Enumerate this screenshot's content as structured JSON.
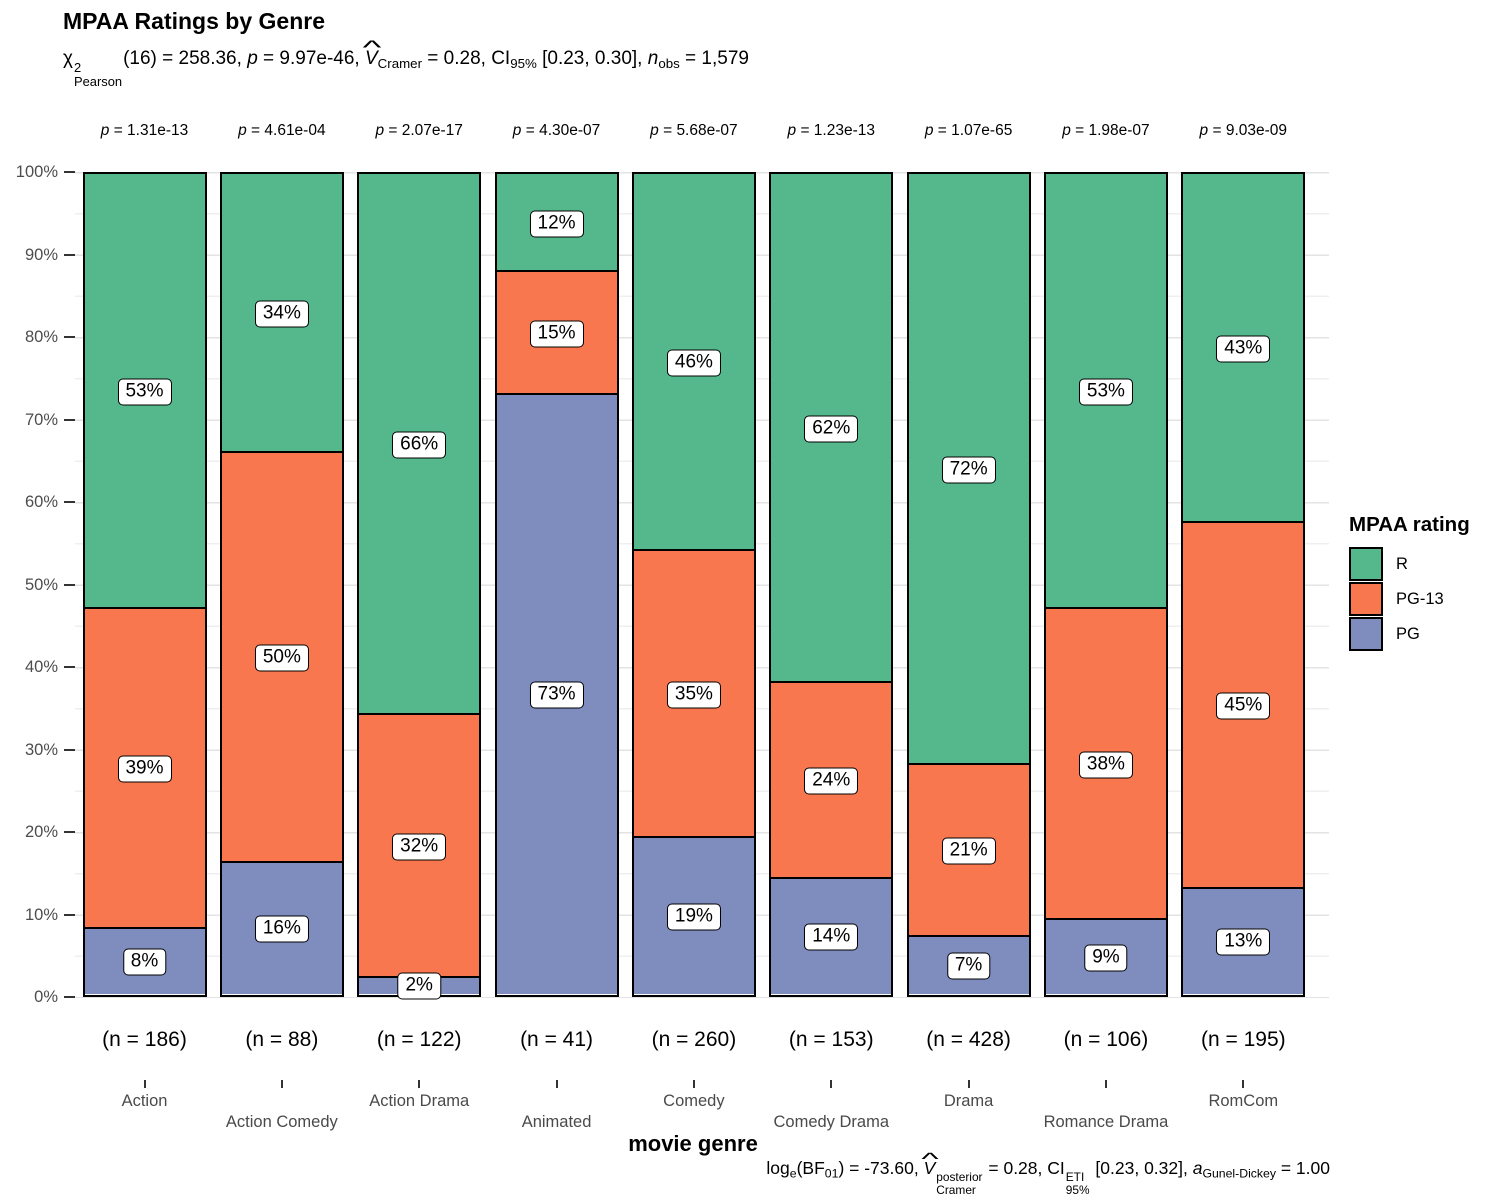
{
  "title": "MPAA Ratings by Genre",
  "subtitle_tokens": [
    {
      "t": "χ"
    },
    {
      "stack": {
        "sup": "2",
        "sub": "Pearson"
      }
    },
    {
      "t": "(16) = 258.36, "
    },
    {
      "t": "p",
      "it": true
    },
    {
      "t": " = 9.97e-46, "
    },
    {
      "t": "V",
      "it": true,
      "hat": true
    },
    {
      "t": "Cramer",
      "sub": true
    },
    {
      "t": " = 0.28, CI"
    },
    {
      "t": "95%",
      "sub": true
    },
    {
      "t": " [0.23, 0.30], "
    },
    {
      "t": "n",
      "it": true
    },
    {
      "t": "obs",
      "sub": true
    },
    {
      "t": " = 1,579"
    }
  ],
  "caption_tokens": [
    {
      "t": "log"
    },
    {
      "t": "e",
      "sub": true
    },
    {
      "t": "(BF"
    },
    {
      "t": "01",
      "sub": true
    },
    {
      "t": ") = -73.60, "
    },
    {
      "t": "V",
      "it": true,
      "hat": true
    },
    {
      "stack": {
        "sup": "posterior",
        "sub": "Cramer"
      }
    },
    {
      "t": " = 0.28, CI"
    },
    {
      "stack": {
        "sup": "ETI",
        "sub": "95%"
      }
    },
    {
      "t": " [0.23, 0.32], "
    },
    {
      "t": "a",
      "it": true
    },
    {
      "t": "Gunel-Dickey",
      "sub": true
    },
    {
      "t": " = 1.00"
    }
  ],
  "p_symbol": "p",
  "p_equals": " = ",
  "legend": {
    "title": "MPAA rating",
    "items": [
      {
        "label": "R",
        "color": "#55B78C"
      },
      {
        "label": "PG-13",
        "color": "#F8774F"
      },
      {
        "label": "PG",
        "color": "#7E8CBE"
      }
    ]
  },
  "chart_data": {
    "type": "bar",
    "stacked": true,
    "percent": true,
    "grid": true,
    "legend_position": "right",
    "title": "MPAA Ratings by Genre",
    "xlabel": "movie genre",
    "ylabel": "",
    "ylim": [
      0,
      100
    ],
    "y_ticks": [
      "0%",
      "10%",
      "20%",
      "30%",
      "40%",
      "50%",
      "60%",
      "70%",
      "80%",
      "90%",
      "100%"
    ],
    "categories": [
      "Action",
      "Action Comedy",
      "Action Drama",
      "Animated",
      "Comedy",
      "Comedy Drama",
      "Drama",
      "Romance Drama",
      "RomCom"
    ],
    "series": [
      {
        "name": "R",
        "color": "#55B78C",
        "values": [
          53,
          34,
          66,
          12,
          46,
          62,
          72,
          53,
          43
        ]
      },
      {
        "name": "PG-13",
        "color": "#F8774F",
        "values": [
          39,
          50,
          32,
          15,
          35,
          24,
          21,
          38,
          45
        ]
      },
      {
        "name": "PG",
        "color": "#7E8CBE",
        "values": [
          8,
          16,
          2,
          73,
          19,
          14,
          7,
          9,
          13
        ]
      }
    ],
    "percent_labels": [
      [
        "53%",
        "34%",
        "66%",
        "12%",
        "46%",
        "62%",
        "72%",
        "53%",
        "43%"
      ],
      [
        "39%",
        "50%",
        "32%",
        "15%",
        "35%",
        "24%",
        "21%",
        "38%",
        "45%"
      ],
      [
        "8%",
        "16%",
        "2%",
        "73%",
        "19%",
        "14%",
        "7%",
        "9%",
        "13%"
      ]
    ],
    "n_labels": [
      "(n = 186)",
      "(n = 88)",
      "(n = 122)",
      "(n = 41)",
      "(n = 260)",
      "(n = 153)",
      "(n = 428)",
      "(n = 106)",
      "(n = 195)"
    ],
    "p_values": [
      "1.31e-13",
      "4.61e-04",
      "2.07e-17",
      "4.30e-07",
      "5.68e-07",
      "1.23e-13",
      "1.07e-65",
      "1.98e-07",
      "9.03e-09"
    ]
  }
}
